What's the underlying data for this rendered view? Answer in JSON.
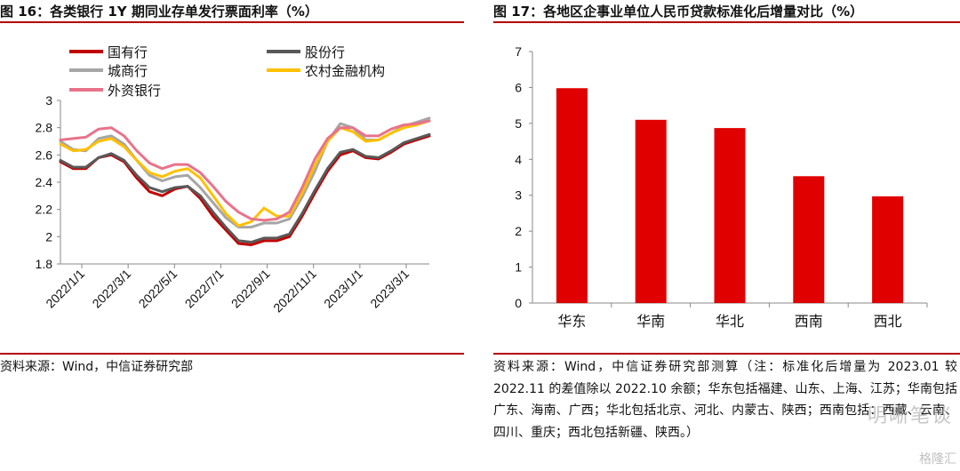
{
  "left": {
    "title": "图 16：各类银行 1Y 期同业存单发行票面利率（%）",
    "source": "资料来源：Wind，中信证券研究部"
  },
  "right": {
    "title": "图 17：各地区企事业单位人民币贷款标准化后增量对比（%）",
    "source": "资料来源：Wind，中信证券研究部测算（注：标准化后增量为 2023.01 较 2022.11 的差值除以 2022.10 余额；华东包括福建、山东、上海、江苏；华南包括广东、海南、广西；华北包括北京、河北、内蒙古、陕西；西南包括：西藏、云南、四川、重庆；西北包括新疆、陕西。）"
  },
  "watermark": "明晰笔谈",
  "watermark2": "格隆汇",
  "chart_data": [
    {
      "type": "line",
      "title": "",
      "ylim": [
        1.8,
        3.0
      ],
      "yticks": [
        "1.8",
        "2",
        "2.2",
        "2.4",
        "2.6",
        "2.8",
        "3"
      ],
      "xticks": [
        "2022/1/1",
        "2022/3/1",
        "2022/5/1",
        "2022/7/1",
        "2022/9/1",
        "2022/11/1",
        "2023/1/1",
        "2023/3/1"
      ],
      "x": [
        0,
        0.5,
        1,
        1.5,
        2,
        2.5,
        3,
        3.5,
        4,
        4.5,
        5,
        5.5,
        6,
        6.5,
        7,
        7.5,
        8,
        8.5,
        9,
        9.5,
        10,
        10.5,
        11,
        11.5,
        12,
        12.5,
        13,
        13.5,
        14,
        14.5
      ],
      "legend_position": "top-left",
      "series": [
        {
          "name": "国有行",
          "color": "#c00000",
          "values": [
            2.55,
            2.5,
            2.5,
            2.58,
            2.6,
            2.55,
            2.43,
            2.33,
            2.3,
            2.35,
            2.37,
            2.28,
            2.15,
            2.05,
            1.95,
            1.94,
            1.97,
            1.97,
            2.0,
            2.15,
            2.32,
            2.48,
            2.6,
            2.63,
            2.58,
            2.57,
            2.62,
            2.68,
            2.71,
            2.74
          ]
        },
        {
          "name": "股份行",
          "color": "#595959",
          "values": [
            2.56,
            2.51,
            2.51,
            2.58,
            2.61,
            2.56,
            2.45,
            2.36,
            2.33,
            2.36,
            2.37,
            2.3,
            2.18,
            2.07,
            1.97,
            1.96,
            1.99,
            1.99,
            2.02,
            2.17,
            2.34,
            2.5,
            2.62,
            2.64,
            2.59,
            2.58,
            2.63,
            2.69,
            2.72,
            2.75
          ]
        },
        {
          "name": "城商行",
          "color": "#a6a6a6",
          "values": [
            2.7,
            2.64,
            2.63,
            2.72,
            2.74,
            2.68,
            2.56,
            2.45,
            2.41,
            2.44,
            2.45,
            2.36,
            2.25,
            2.14,
            2.07,
            2.07,
            2.1,
            2.1,
            2.13,
            2.29,
            2.48,
            2.7,
            2.83,
            2.8,
            2.71,
            2.71,
            2.76,
            2.81,
            2.84,
            2.87
          ]
        },
        {
          "name": "农村金融机构",
          "color": "#ffc000",
          "values": [
            2.68,
            2.63,
            2.64,
            2.7,
            2.72,
            2.66,
            2.56,
            2.47,
            2.44,
            2.48,
            2.5,
            2.43,
            2.3,
            2.17,
            2.08,
            2.11,
            2.21,
            2.15,
            2.15,
            2.32,
            2.52,
            2.7,
            2.8,
            2.77,
            2.7,
            2.71,
            2.76,
            2.8,
            2.82,
            2.85
          ]
        },
        {
          "name": "外资银行",
          "color": "#e8738a",
          "values": [
            2.71,
            2.72,
            2.73,
            2.79,
            2.8,
            2.74,
            2.63,
            2.54,
            2.5,
            2.53,
            2.53,
            2.47,
            2.37,
            2.26,
            2.18,
            2.13,
            2.12,
            2.13,
            2.18,
            2.36,
            2.57,
            2.72,
            2.8,
            2.8,
            2.74,
            2.74,
            2.79,
            2.82,
            2.83,
            2.85
          ]
        }
      ]
    },
    {
      "type": "bar",
      "title": "",
      "ylim": [
        0,
        7
      ],
      "yticks": [
        "0",
        "1",
        "2",
        "3",
        "4",
        "5",
        "6",
        "7"
      ],
      "categories": [
        "华东",
        "华南",
        "华北",
        "西南",
        "西北"
      ],
      "values": [
        5.98,
        5.1,
        4.87,
        3.53,
        2.97
      ],
      "color": "#e00000"
    }
  ]
}
